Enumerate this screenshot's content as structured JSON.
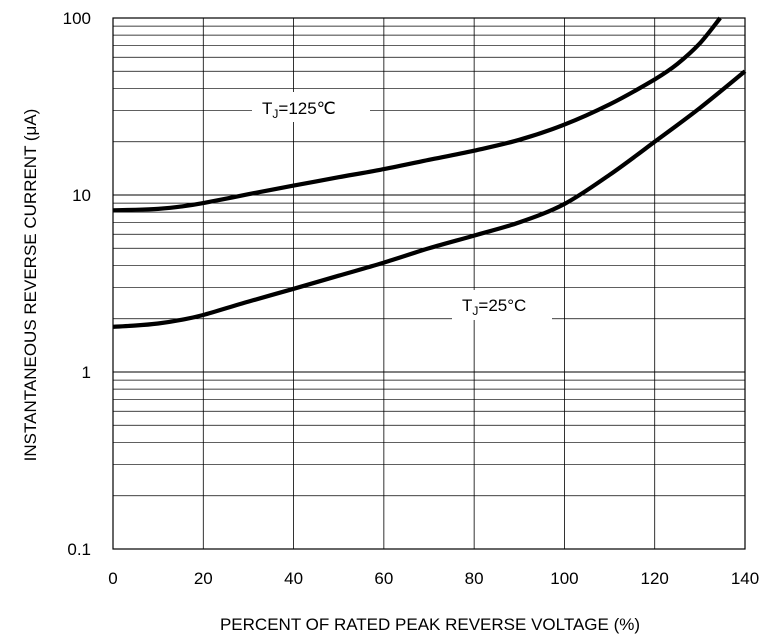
{
  "chart_data": {
    "type": "line",
    "title": "",
    "xlabel": "PERCENT OF RATED PEAK REVERSE VOLTAGE (%)",
    "ylabel": "INSTANTANEOUS REVERSE CURRENT (μA)",
    "xlim": [
      0,
      140
    ],
    "ylim": [
      0.1,
      100
    ],
    "yscale": "log",
    "grid": true,
    "legend": "none",
    "xticks": [
      0,
      20,
      40,
      60,
      80,
      100,
      120,
      140
    ],
    "yticks": [
      0.1,
      1,
      10,
      100
    ],
    "xtick_labels": [
      "0",
      "20",
      "40",
      "60",
      "80",
      "100",
      "120",
      "140"
    ],
    "ytick_labels": [
      "0.1",
      "1",
      "10",
      "100"
    ],
    "series": [
      {
        "x": [
          0,
          5,
          10,
          15,
          20,
          30,
          40,
          50,
          60,
          70,
          80,
          90,
          100,
          110,
          120,
          125,
          130,
          134.5
        ],
        "y": [
          8.2,
          8.25,
          8.35,
          8.6,
          9.0,
          10.1,
          11.3,
          12.6,
          14.0,
          15.8,
          17.8,
          20.5,
          25.0,
          32.5,
          45.0,
          55.0,
          72.0,
          100.0
        ]
      },
      {
        "x": [
          0,
          5,
          10,
          15,
          20,
          30,
          40,
          50,
          60,
          70,
          80,
          90,
          100,
          110,
          120,
          130,
          140
        ],
        "y": [
          1.8,
          1.83,
          1.88,
          1.97,
          2.1,
          2.5,
          2.95,
          3.5,
          4.15,
          5.0,
          5.9,
          7.0,
          8.9,
          13.0,
          20.0,
          31.0,
          50.0
        ]
      }
    ],
    "annotations": [
      {
        "main": "T",
        "sub": "J",
        "rest": "=125℃"
      },
      {
        "main": "T",
        "sub": "J",
        "rest": "=25°C"
      }
    ]
  }
}
